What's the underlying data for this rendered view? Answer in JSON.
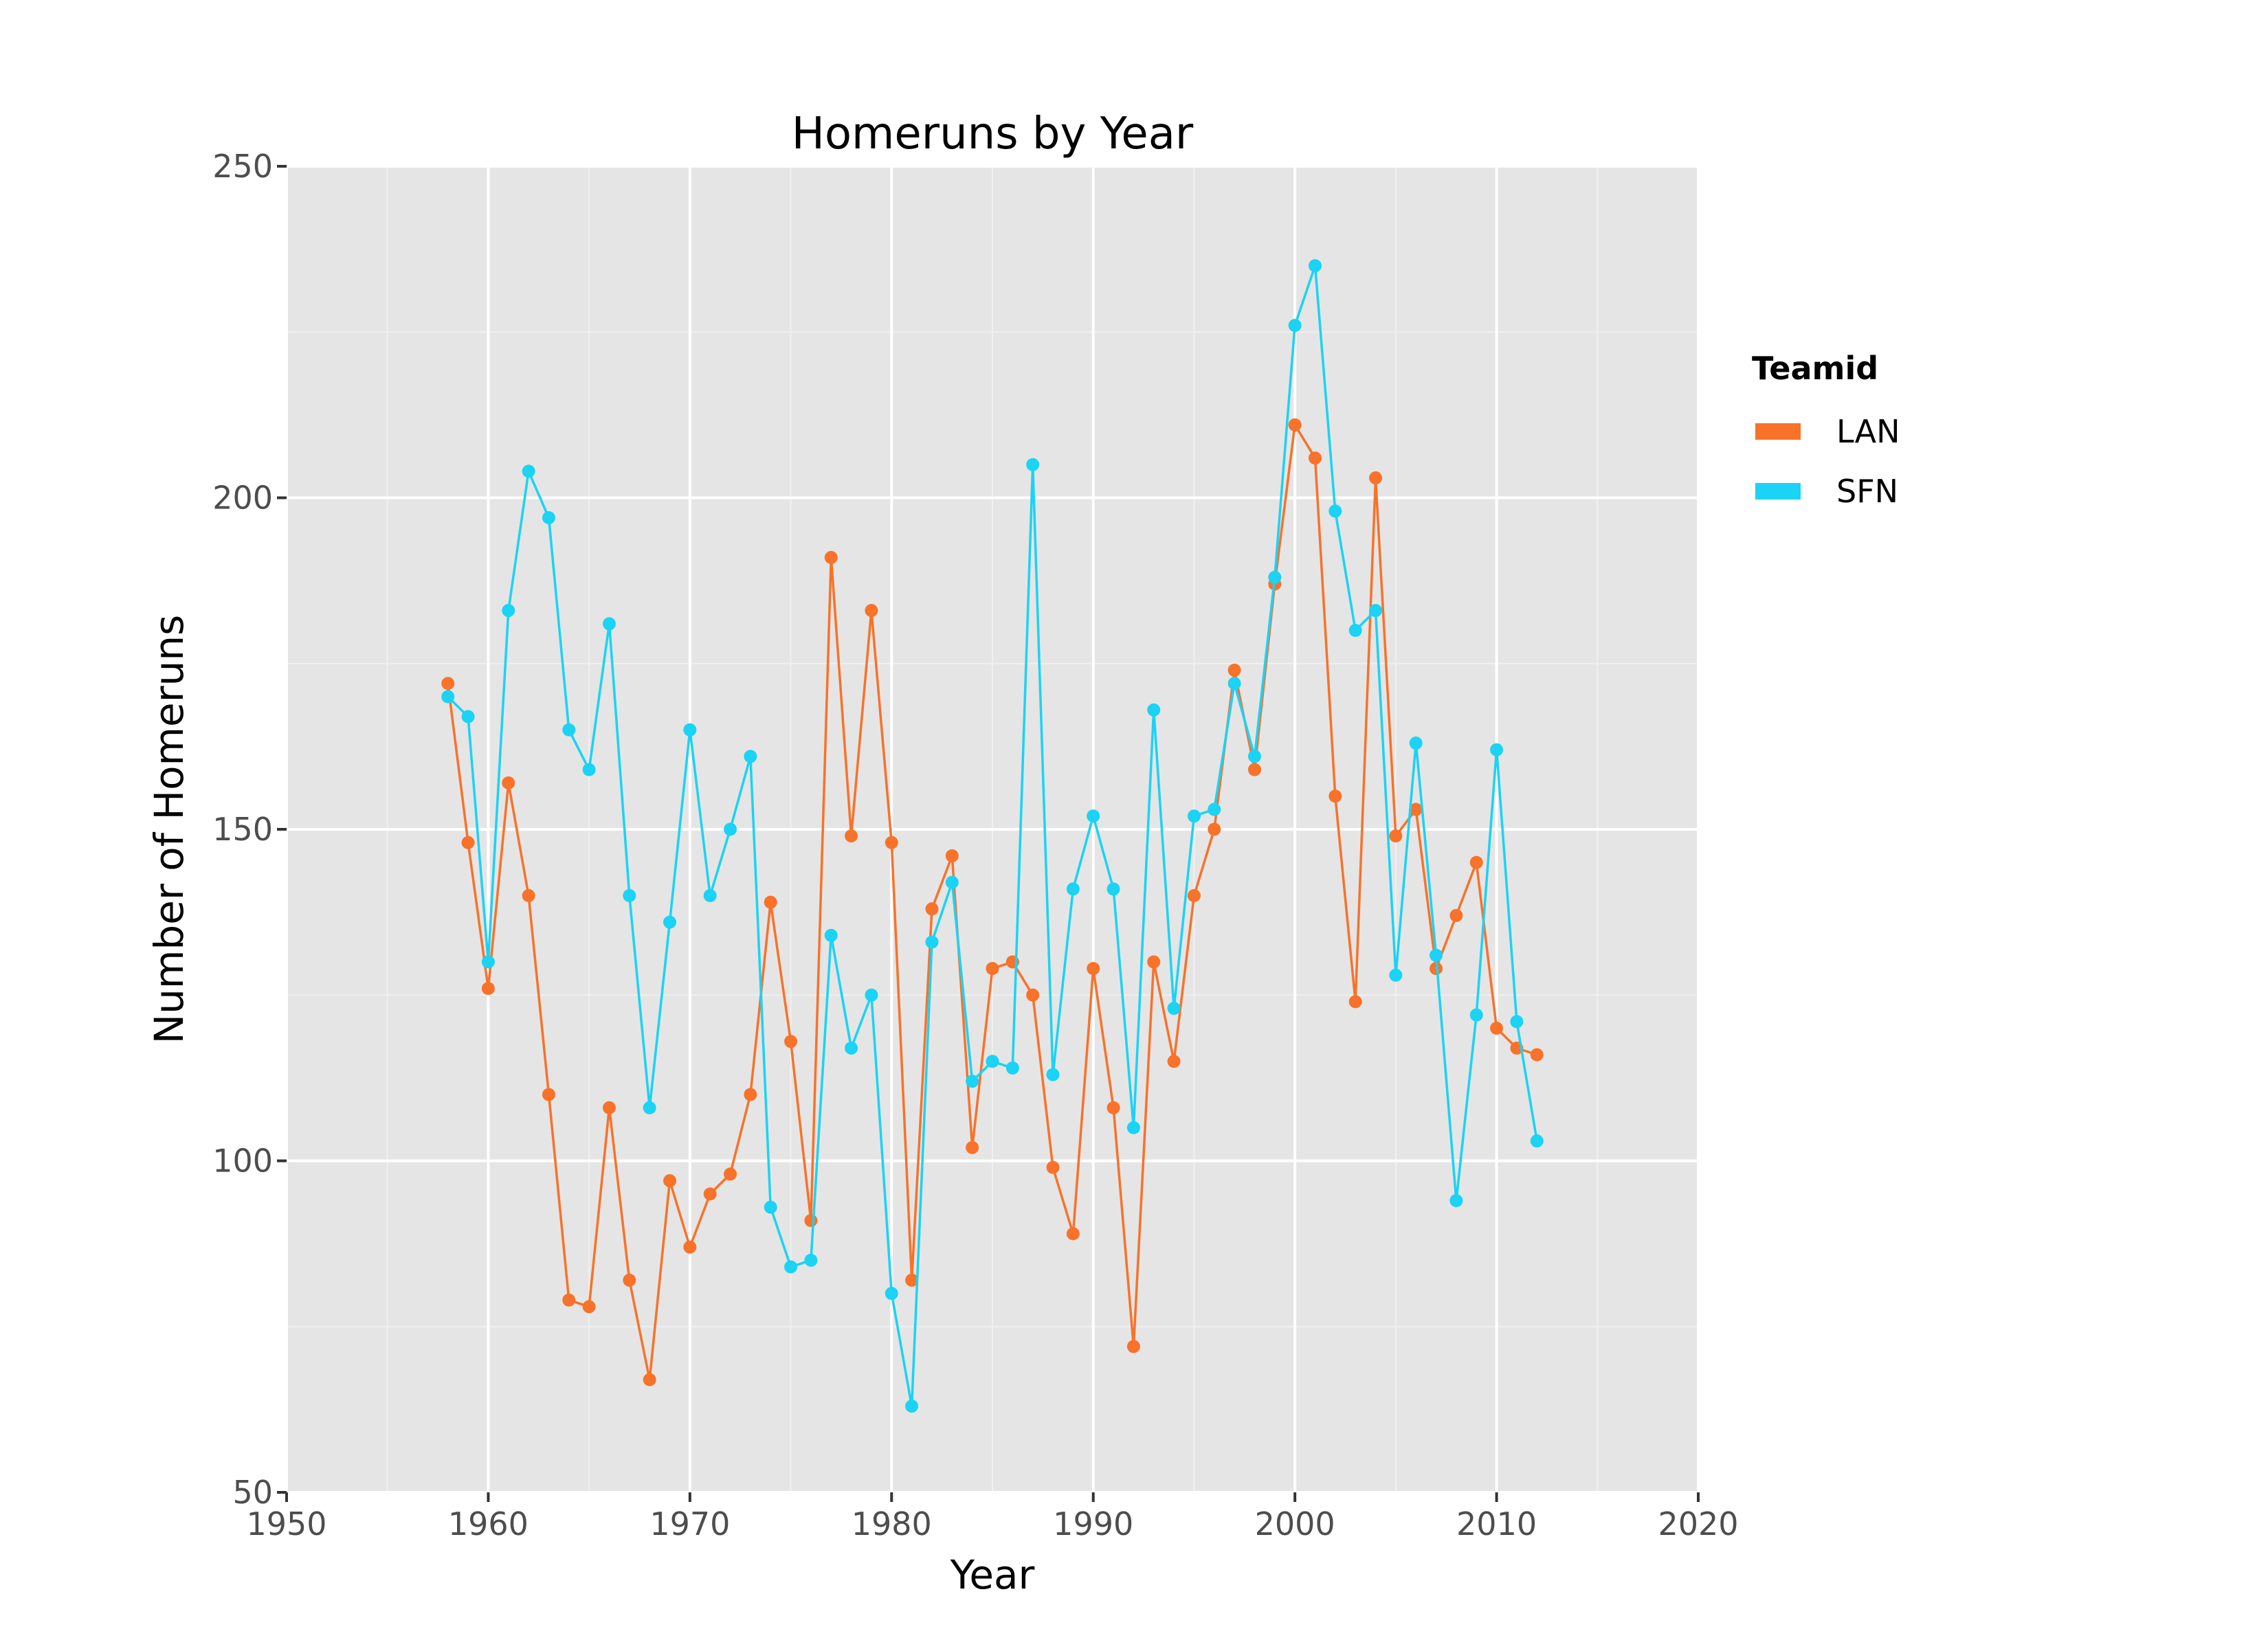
{
  "chart_data": {
    "type": "line",
    "title": "Homeruns by Year",
    "xlabel": "Year",
    "ylabel": "Number of Homeruns",
    "xlim": [
      1950,
      2020
    ],
    "ylim": [
      50,
      250
    ],
    "xticks": [
      1950,
      1960,
      1970,
      1980,
      1990,
      2000,
      2010,
      2020
    ],
    "yticks": [
      50,
      100,
      150,
      200,
      250
    ],
    "grid": true,
    "legend": {
      "title": "Teamid",
      "position": "right"
    },
    "series": [
      {
        "name": "LAN",
        "color": "#f8722a",
        "x": [
          1958,
          1959,
          1960,
          1961,
          1962,
          1963,
          1964,
          1965,
          1966,
          1967,
          1968,
          1969,
          1970,
          1971,
          1972,
          1973,
          1974,
          1975,
          1976,
          1977,
          1978,
          1979,
          1980,
          1981,
          1982,
          1983,
          1984,
          1985,
          1986,
          1987,
          1988,
          1989,
          1990,
          1991,
          1992,
          1993,
          1994,
          1995,
          1996,
          1997,
          1998,
          1999,
          2000,
          2001,
          2002,
          2003,
          2004,
          2005,
          2006,
          2007,
          2008,
          2009,
          2010,
          2011,
          2012
        ],
        "y": [
          172,
          148,
          126,
          157,
          140,
          110,
          79,
          78,
          108,
          82,
          67,
          97,
          87,
          95,
          98,
          110,
          139,
          118,
          91,
          191,
          149,
          183,
          148,
          82,
          138,
          146,
          102,
          129,
          130,
          125,
          99,
          89,
          129,
          108,
          72,
          130,
          115,
          140,
          150,
          174,
          159,
          187,
          211,
          206,
          155,
          124,
          203,
          149,
          153,
          129,
          137,
          145,
          120,
          117,
          116
        ]
      },
      {
        "name": "SFN",
        "color": "#1ad3f5",
        "x": [
          1958,
          1959,
          1960,
          1961,
          1962,
          1963,
          1964,
          1965,
          1966,
          1967,
          1968,
          1969,
          1970,
          1971,
          1972,
          1973,
          1974,
          1975,
          1976,
          1977,
          1978,
          1979,
          1980,
          1981,
          1982,
          1983,
          1984,
          1985,
          1986,
          1987,
          1988,
          1989,
          1990,
          1991,
          1992,
          1993,
          1994,
          1995,
          1996,
          1997,
          1998,
          1999,
          2000,
          2001,
          2002,
          2003,
          2004,
          2005,
          2006,
          2007,
          2008,
          2009,
          2010,
          2011,
          2012
        ],
        "y": [
          170,
          167,
          130,
          183,
          204,
          197,
          165,
          159,
          181,
          140,
          108,
          136,
          165,
          140,
          150,
          161,
          93,
          84,
          85,
          134,
          117,
          125,
          80,
          63,
          133,
          142,
          112,
          115,
          114,
          205,
          113,
          141,
          152,
          141,
          105,
          168,
          123,
          152,
          153,
          172,
          161,
          188,
          226,
          235,
          198,
          180,
          183,
          128,
          163,
          131,
          94,
          122,
          162,
          121,
          103
        ]
      }
    ]
  }
}
